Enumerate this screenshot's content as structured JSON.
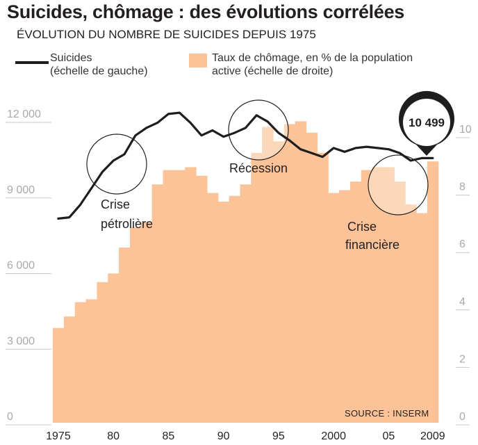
{
  "title": "Suicides, chômage : des évolutions corrélées",
  "subtitle": "ÉVOLUTION DU NOMBRE DE SUICIDES DEPUIS 1975",
  "legend": {
    "suicides_line1": "Suicides",
    "suicides_line2": "(échelle de gauche)",
    "unemployment_line1": "Taux de chômage, en % de la population",
    "unemployment_line2": "active (échelle de droite)"
  },
  "source": "SOURCE : INSERM",
  "callout": "10 499",
  "annotations": {
    "oil_crisis_1": "Crise",
    "oil_crisis_2": "pétrolière",
    "recession": "Récession",
    "financial_crisis_1": "Crise",
    "financial_crisis_2": "financière"
  },
  "chart_data": {
    "type": "line+bar",
    "x_tick_labels": [
      "1975",
      "80",
      "85",
      "90",
      "95",
      "2000",
      "05",
      "2009"
    ],
    "left_ticks": [
      "0",
      "3 000",
      "6 000",
      "9 000",
      "12 000"
    ],
    "right_ticks": [
      "0",
      "2",
      "4",
      "6",
      "8",
      "10"
    ],
    "ylim_left": [
      0,
      12500
    ],
    "ylim_right": [
      0,
      10.5
    ],
    "series": [
      {
        "name": "Suicides",
        "axis": "left",
        "color": "#1e1e1e",
        "x": [
          1975,
          1976,
          1977,
          1978,
          1979,
          1980,
          1981,
          1982,
          1983,
          1984,
          1985,
          1986,
          1987,
          1988,
          1989,
          1990,
          1991,
          1992,
          1993,
          1994,
          1995,
          1996,
          1997,
          1998,
          1999,
          2000,
          2001,
          2002,
          2003,
          2004,
          2005,
          2006,
          2007,
          2008,
          2009
        ],
        "values": [
          8100,
          8150,
          8650,
          9300,
          9950,
          10400,
          10650,
          11400,
          11700,
          11900,
          12250,
          12300,
          11900,
          11400,
          11600,
          11350,
          11500,
          11700,
          12200,
          11950,
          11500,
          11200,
          10850,
          10700,
          10550,
          10900,
          10750,
          10900,
          10950,
          10900,
          10850,
          10700,
          10400,
          10500,
          10499
        ]
      },
      {
        "name": "Taux de chômage, en % de la population active",
        "axis": "right",
        "color": "#fbc397",
        "x": [
          1975,
          1976,
          1977,
          1978,
          1979,
          1980,
          1981,
          1982,
          1983,
          1984,
          1985,
          1986,
          1987,
          1988,
          1989,
          1990,
          1991,
          1992,
          1993,
          1994,
          1995,
          1996,
          1997,
          1998,
          1999,
          2000,
          2001,
          2002,
          2003,
          2004,
          2005,
          2006,
          2007,
          2008,
          2009
        ],
        "values": [
          3.3,
          3.7,
          4.2,
          4.3,
          4.9,
          5.2,
          6.1,
          6.8,
          7.0,
          8.3,
          8.8,
          8.8,
          8.9,
          8.6,
          8.0,
          7.7,
          7.9,
          8.3,
          9.4,
          10.3,
          9.8,
          10.4,
          10.5,
          10.1,
          9.4,
          8.0,
          8.1,
          8.4,
          8.8,
          8.9,
          8.9,
          8.4,
          7.6,
          7.3,
          9.1
        ]
      }
    ]
  }
}
